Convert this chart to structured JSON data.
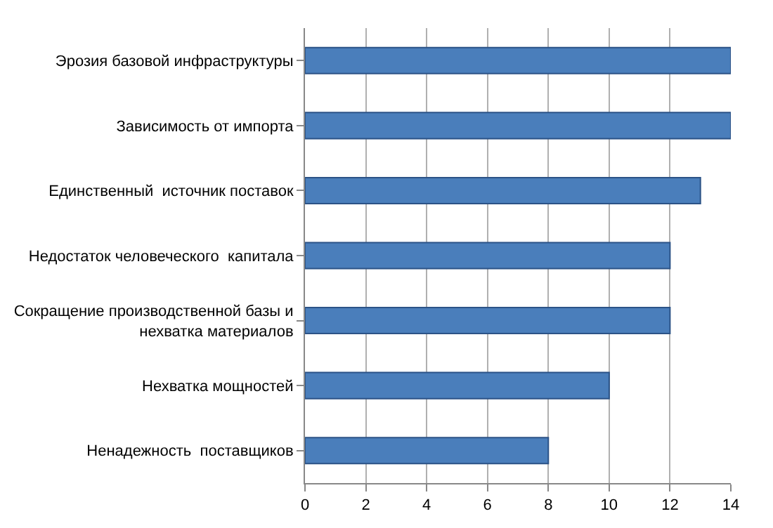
{
  "chart_data": {
    "type": "bar",
    "orientation": "horizontal",
    "categories": [
      "Эрозия базовой инфраструктуры",
      "Зависимость от импорта",
      "Единственный  источник поставок",
      "Недостаток человеческого  капитала",
      "Сокращение производственной базы и нехватка материалов",
      "Нехватка мощностей",
      "Ненадежность  поставщиков"
    ],
    "values": [
      14,
      14,
      13,
      12,
      12,
      10,
      8
    ],
    "color": "#4a7ebb",
    "xlim": [
      0,
      14
    ],
    "xticks": [
      0,
      2,
      4,
      6,
      8,
      10,
      12,
      14
    ],
    "grid": "x"
  }
}
